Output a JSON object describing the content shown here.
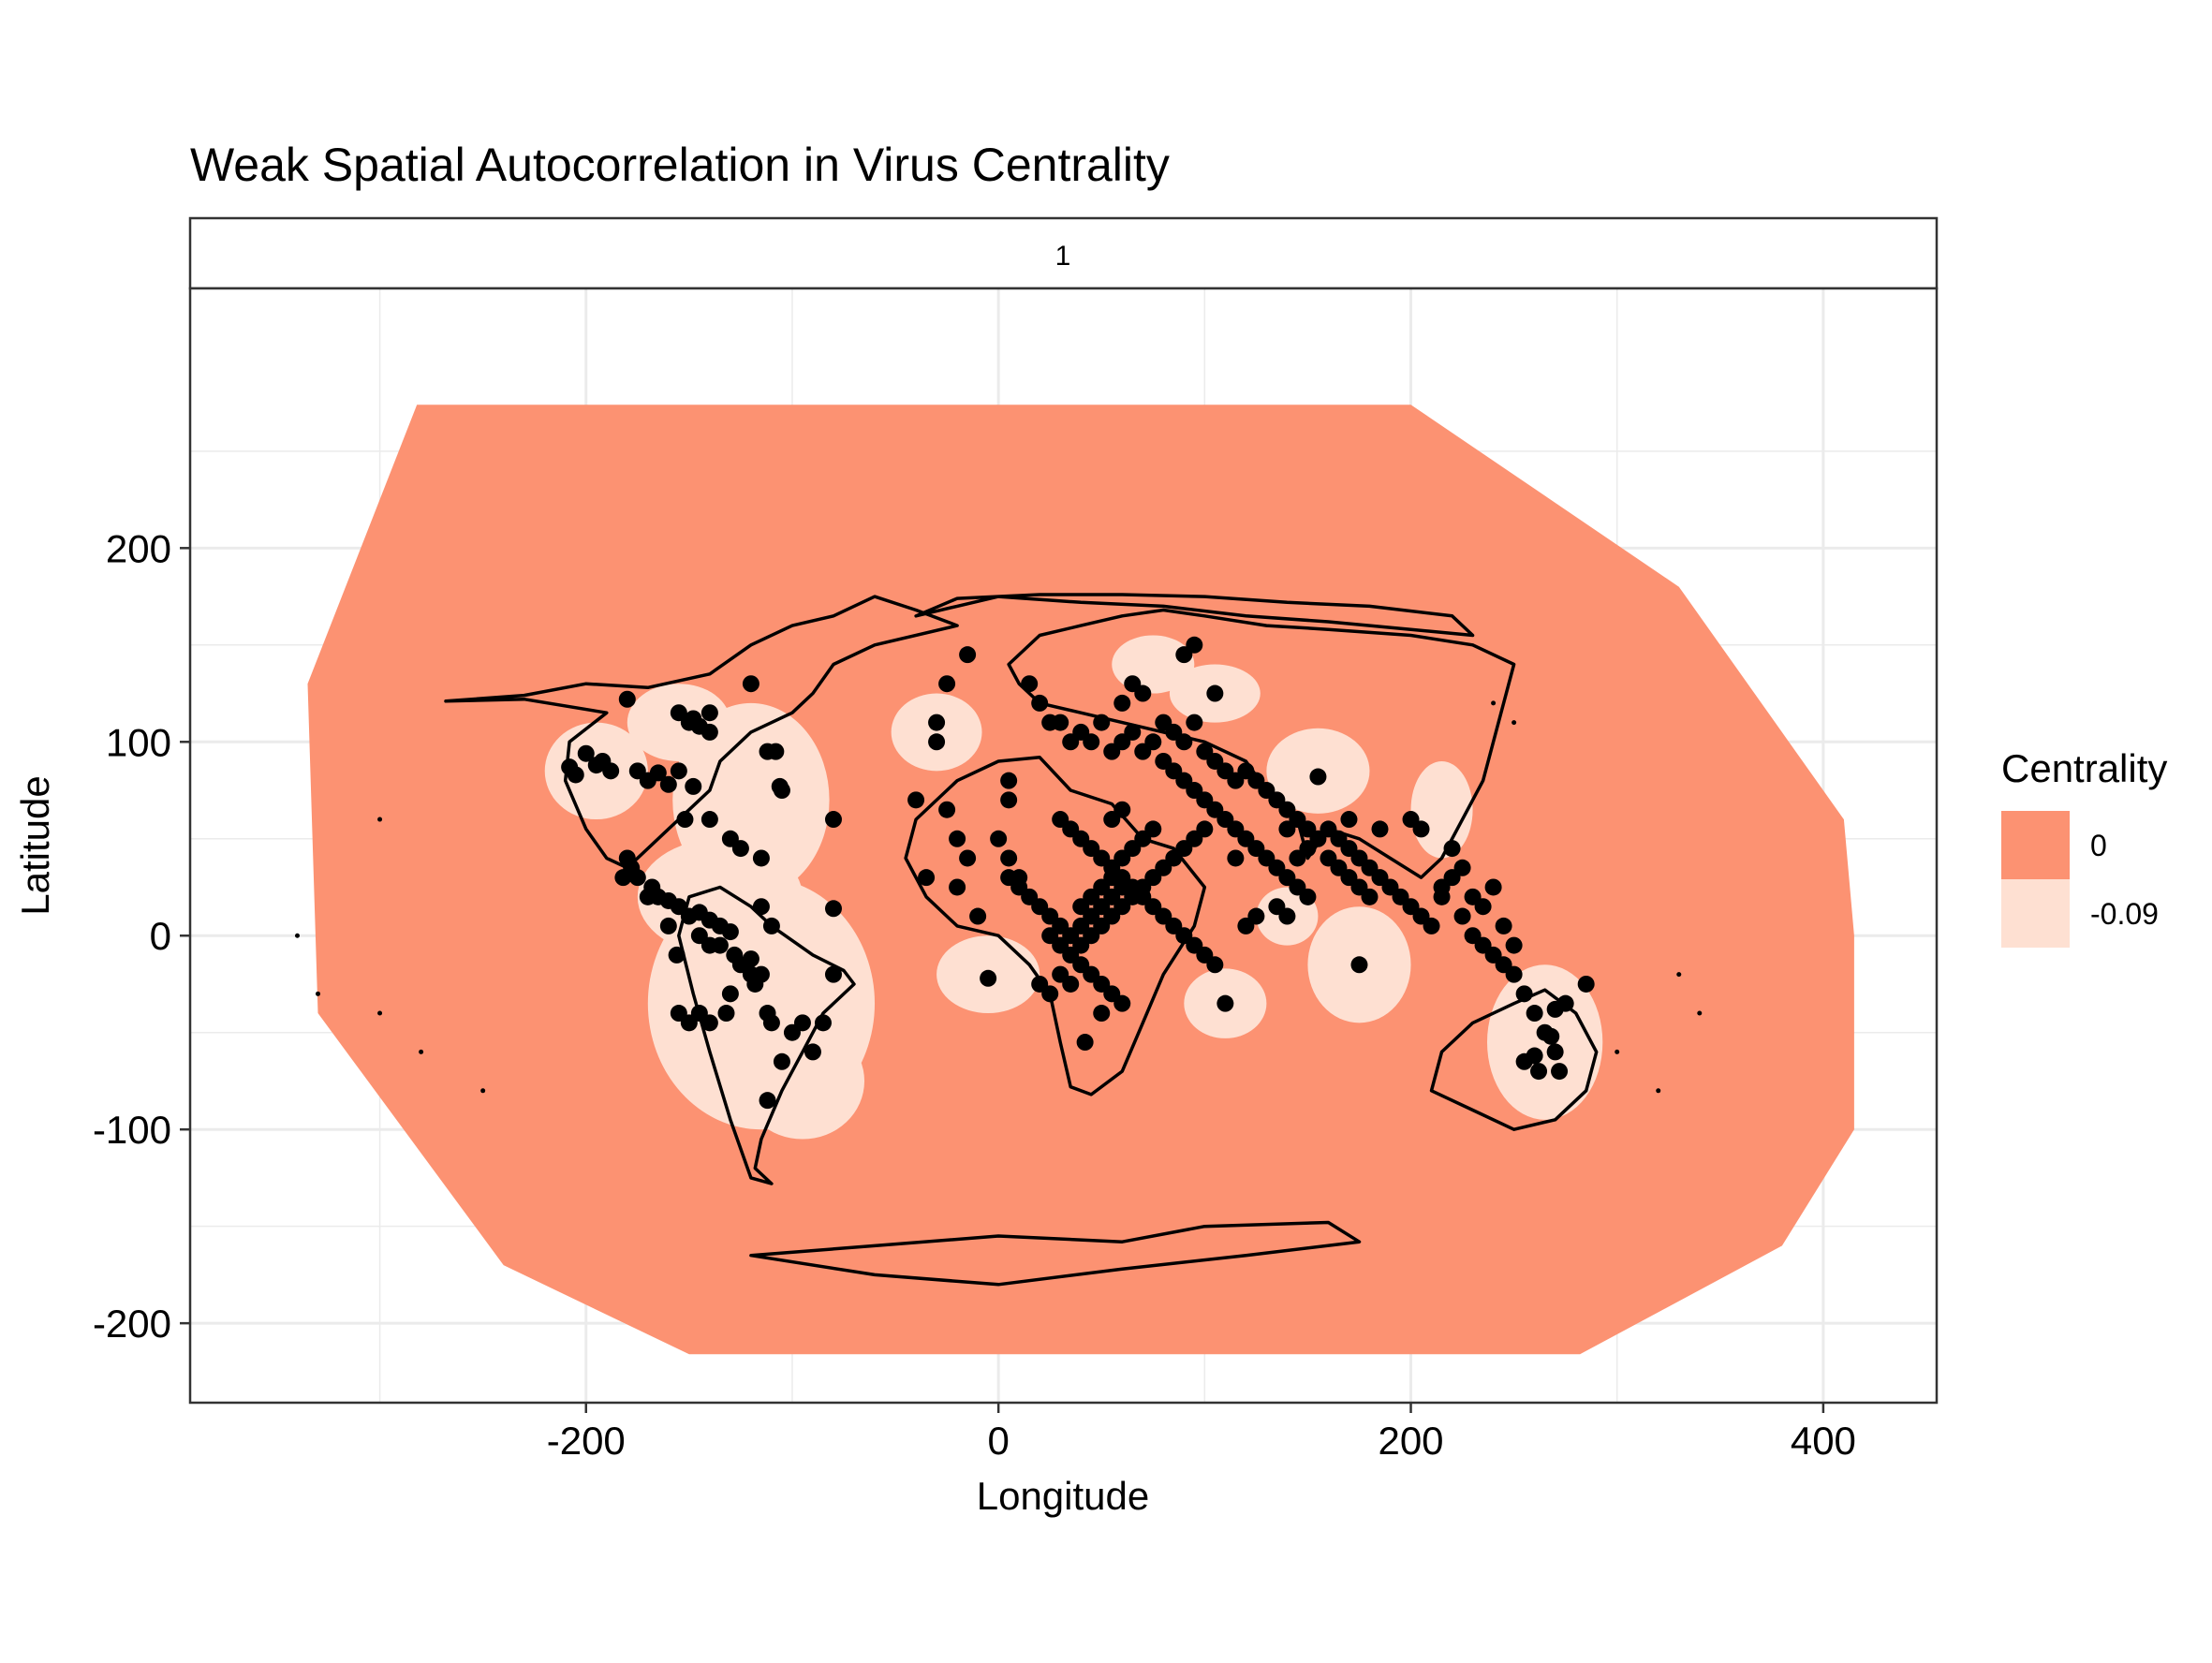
{
  "chart_data": {
    "type": "scatter",
    "title": "Weak Spatial Autocorrelation in Virus Centrality",
    "facet_label": "1",
    "xlabel": "Longitude",
    "ylabel": "Latitude",
    "xlim": [
      -392,
      455
    ],
    "ylim": [
      -241,
      334
    ],
    "x_ticks": [
      -200,
      0,
      200,
      400
    ],
    "y_ticks": [
      200,
      100,
      0,
      -100,
      -200
    ],
    "x_tick_labels": [
      "-200",
      "0",
      "200",
      "400"
    ],
    "y_tick_labels": [
      "200",
      "100",
      "0",
      "-100",
      "-200"
    ],
    "grid": true,
    "legend": {
      "title": "Centrality",
      "placement": "right",
      "entries": [
        {
          "label": "0",
          "value": 0,
          "color": "#FC9272"
        },
        {
          "label": "-0.09",
          "value": -0.09,
          "color": "#FEE0D2"
        }
      ]
    },
    "colors": {
      "surface_high": "#FC9272",
      "surface_low": "#FEE0D2",
      "points": "#000000",
      "coastline": "#000000",
      "grid": "#EBEBEB",
      "panel_border": "#333333"
    },
    "surface_region": [
      [
        -282,
        274
      ],
      [
        0,
        274
      ],
      [
        200,
        274
      ],
      [
        330,
        180
      ],
      [
        410,
        60
      ],
      [
        415,
        0
      ],
      [
        415,
        -100
      ],
      [
        380,
        -160
      ],
      [
        282,
        -216
      ],
      [
        0,
        -216
      ],
      [
        -150,
        -216
      ],
      [
        -240,
        -170
      ],
      [
        -330,
        -40
      ],
      [
        -335,
        130
      ],
      [
        -282,
        274
      ]
    ],
    "low_centrality_zones": [
      {
        "x": -120,
        "y": 70,
        "rx": 38,
        "ry": 50
      },
      {
        "x": -135,
        "y": 20,
        "rx": 40,
        "ry": 30
      },
      {
        "x": -115,
        "y": -35,
        "rx": 55,
        "ry": 65
      },
      {
        "x": -95,
        "y": -75,
        "rx": 30,
        "ry": 30
      },
      {
        "x": -195,
        "y": 85,
        "rx": 25,
        "ry": 25
      },
      {
        "x": -155,
        "y": 110,
        "rx": 25,
        "ry": 20
      },
      {
        "x": -30,
        "y": 105,
        "rx": 22,
        "ry": 20
      },
      {
        "x": -5,
        "y": -20,
        "rx": 25,
        "ry": 20
      },
      {
        "x": 75,
        "y": 140,
        "rx": 20,
        "ry": 15
      },
      {
        "x": 105,
        "y": 125,
        "rx": 22,
        "ry": 15
      },
      {
        "x": 155,
        "y": 85,
        "rx": 25,
        "ry": 22
      },
      {
        "x": 175,
        "y": -15,
        "rx": 25,
        "ry": 30
      },
      {
        "x": 110,
        "y": -35,
        "rx": 20,
        "ry": 18
      },
      {
        "x": 265,
        "y": -55,
        "rx": 28,
        "ry": 40
      },
      {
        "x": 215,
        "y": 65,
        "rx": 15,
        "ry": 25
      },
      {
        "x": 140,
        "y": 10,
        "rx": 15,
        "ry": 15
      }
    ],
    "points": [
      [
        -208,
        87
      ],
      [
        -205,
        83
      ],
      [
        -200,
        94
      ],
      [
        -195,
        88
      ],
      [
        -192,
        90
      ],
      [
        -188,
        85
      ],
      [
        -180,
        122
      ],
      [
        -175,
        85
      ],
      [
        -170,
        80
      ],
      [
        -165,
        84
      ],
      [
        -160,
        78
      ],
      [
        -155,
        115
      ],
      [
        -150,
        110
      ],
      [
        -148,
        112
      ],
      [
        -145,
        108
      ],
      [
        -140,
        105
      ],
      [
        -140,
        115
      ],
      [
        -155,
        85
      ],
      [
        -148,
        77
      ],
      [
        -152,
        60
      ],
      [
        -140,
        60
      ],
      [
        -175,
        30
      ],
      [
        -168,
        25
      ],
      [
        -165,
        20
      ],
      [
        -160,
        18
      ],
      [
        -155,
        15
      ],
      [
        -150,
        10
      ],
      [
        -145,
        12
      ],
      [
        -140,
        8
      ],
      [
        -145,
        0
      ],
      [
        -140,
        -5
      ],
      [
        -135,
        5
      ],
      [
        -130,
        2
      ],
      [
        -128,
        -10
      ],
      [
        -125,
        -15
      ],
      [
        -120,
        -20
      ],
      [
        -115,
        15
      ],
      [
        -110,
        5
      ],
      [
        -130,
        50
      ],
      [
        -125,
        45
      ],
      [
        -115,
        40
      ],
      [
        -108,
        95
      ],
      [
        -106,
        77
      ],
      [
        -105,
        75
      ],
      [
        -80,
        60
      ],
      [
        -80,
        14
      ],
      [
        -100,
        -50
      ],
      [
        -110,
        -45
      ],
      [
        -112,
        -40
      ],
      [
        -115,
        -20
      ],
      [
        -118,
        -25
      ],
      [
        -105,
        -65
      ],
      [
        -95,
        -45
      ],
      [
        -90,
        -60
      ],
      [
        -85,
        -45
      ],
      [
        -80,
        -20
      ],
      [
        -112,
        -85
      ],
      [
        -130,
        -30
      ],
      [
        -132,
        -40
      ],
      [
        -140,
        -45
      ],
      [
        -145,
        -40
      ],
      [
        -155,
        -40
      ],
      [
        -150,
        -45
      ],
      [
        -120,
        130
      ],
      [
        -112,
        95
      ],
      [
        -180,
        40
      ],
      [
        -178,
        35
      ],
      [
        -182,
        30
      ],
      [
        -170,
        20
      ],
      [
        -160,
        5
      ],
      [
        -156,
        -10
      ],
      [
        -135,
        -5
      ],
      [
        -120,
        -12
      ],
      [
        -30,
        110
      ],
      [
        -30,
        100
      ],
      [
        -40,
        70
      ],
      [
        -35,
        30
      ],
      [
        -20,
        25
      ],
      [
        -10,
        10
      ],
      [
        -5,
        -22
      ],
      [
        -25,
        65
      ],
      [
        -15,
        40
      ],
      [
        -20,
        50
      ],
      [
        5,
        80
      ],
      [
        5,
        70
      ],
      [
        0,
        50
      ],
      [
        5,
        40
      ],
      [
        10,
        30
      ],
      [
        -15,
        145
      ],
      [
        -25,
        130
      ],
      [
        15,
        130
      ],
      [
        20,
        120
      ],
      [
        25,
        110
      ],
      [
        30,
        110
      ],
      [
        35,
        100
      ],
      [
        40,
        105
      ],
      [
        45,
        100
      ],
      [
        50,
        110
      ],
      [
        55,
        95
      ],
      [
        60,
        100
      ],
      [
        65,
        105
      ],
      [
        70,
        95
      ],
      [
        75,
        100
      ],
      [
        80,
        110
      ],
      [
        85,
        105
      ],
      [
        90,
        100
      ],
      [
        95,
        110
      ],
      [
        100,
        95
      ],
      [
        105,
        90
      ],
      [
        110,
        85
      ],
      [
        115,
        80
      ],
      [
        120,
        85
      ],
      [
        125,
        80
      ],
      [
        130,
        75
      ],
      [
        135,
        70
      ],
      [
        140,
        65
      ],
      [
        145,
        60
      ],
      [
        150,
        55
      ],
      [
        155,
        50
      ],
      [
        160,
        55
      ],
      [
        165,
        50
      ],
      [
        170,
        45
      ],
      [
        175,
        40
      ],
      [
        180,
        35
      ],
      [
        185,
        30
      ],
      [
        190,
        25
      ],
      [
        195,
        20
      ],
      [
        200,
        15
      ],
      [
        205,
        10
      ],
      [
        210,
        5
      ],
      [
        215,
        20
      ],
      [
        220,
        30
      ],
      [
        225,
        10
      ],
      [
        230,
        0
      ],
      [
        235,
        -5
      ],
      [
        240,
        -10
      ],
      [
        245,
        -15
      ],
      [
        250,
        -20
      ],
      [
        255,
        -30
      ],
      [
        260,
        -40
      ],
      [
        265,
        -50
      ],
      [
        270,
        -60
      ],
      [
        272,
        -70
      ],
      [
        262,
        -70
      ],
      [
        255,
        -65
      ],
      [
        260,
        -62
      ],
      [
        268,
        -52
      ],
      [
        270,
        -38
      ],
      [
        275,
        -35
      ],
      [
        285,
        -25
      ],
      [
        60,
        120
      ],
      [
        65,
        130
      ],
      [
        70,
        125
      ],
      [
        80,
        90
      ],
      [
        85,
        85
      ],
      [
        90,
        80
      ],
      [
        95,
        75
      ],
      [
        100,
        70
      ],
      [
        105,
        65
      ],
      [
        110,
        60
      ],
      [
        115,
        55
      ],
      [
        120,
        50
      ],
      [
        125,
        45
      ],
      [
        130,
        40
      ],
      [
        135,
        35
      ],
      [
        140,
        30
      ],
      [
        145,
        25
      ],
      [
        150,
        20
      ],
      [
        30,
        60
      ],
      [
        35,
        55
      ],
      [
        40,
        50
      ],
      [
        45,
        45
      ],
      [
        50,
        40
      ],
      [
        55,
        35
      ],
      [
        60,
        30
      ],
      [
        65,
        25
      ],
      [
        70,
        20
      ],
      [
        75,
        15
      ],
      [
        80,
        10
      ],
      [
        85,
        5
      ],
      [
        90,
        0
      ],
      [
        95,
        -5
      ],
      [
        100,
        -10
      ],
      [
        105,
        -15
      ],
      [
        25,
        0
      ],
      [
        30,
        -5
      ],
      [
        35,
        -10
      ],
      [
        40,
        -15
      ],
      [
        45,
        -20
      ],
      [
        50,
        -25
      ],
      [
        55,
        -30
      ],
      [
        60,
        -35
      ],
      [
        40,
        5
      ],
      [
        45,
        10
      ],
      [
        50,
        15
      ],
      [
        55,
        20
      ],
      [
        60,
        25
      ],
      [
        42,
        -55
      ],
      [
        50,
        -40
      ],
      [
        20,
        -25
      ],
      [
        25,
        -30
      ],
      [
        30,
        -20
      ],
      [
        35,
        -25
      ],
      [
        40,
        15
      ],
      [
        45,
        20
      ],
      [
        50,
        25
      ],
      [
        55,
        30
      ],
      [
        60,
        40
      ],
      [
        65,
        45
      ],
      [
        70,
        50
      ],
      [
        75,
        55
      ],
      [
        55,
        60
      ],
      [
        60,
        65
      ],
      [
        105,
        125
      ],
      [
        90,
        145
      ],
      [
        95,
        150
      ],
      [
        115,
        40
      ],
      [
        110,
        -35
      ],
      [
        120,
        5
      ],
      [
        125,
        10
      ],
      [
        135,
        15
      ],
      [
        140,
        10
      ],
      [
        155,
        82
      ],
      [
        175,
        -15
      ],
      [
        170,
        60
      ],
      [
        185,
        55
      ],
      [
        200,
        60
      ],
      [
        205,
        55
      ],
      [
        215,
        25
      ],
      [
        220,
        45
      ],
      [
        225,
        35
      ],
      [
        230,
        20
      ],
      [
        235,
        15
      ],
      [
        240,
        25
      ],
      [
        245,
        5
      ],
      [
        250,
        -5
      ],
      [
        150,
        45
      ],
      [
        140,
        55
      ],
      [
        145,
        40
      ],
      [
        160,
        40
      ],
      [
        165,
        35
      ],
      [
        170,
        30
      ],
      [
        175,
        25
      ],
      [
        180,
        20
      ],
      [
        100,
        55
      ],
      [
        95,
        50
      ],
      [
        90,
        45
      ],
      [
        85,
        40
      ],
      [
        80,
        35
      ],
      [
        75,
        30
      ],
      [
        70,
        25
      ],
      [
        65,
        20
      ],
      [
        60,
        15
      ],
      [
        55,
        10
      ],
      [
        50,
        5
      ],
      [
        45,
        0
      ],
      [
        40,
        -5
      ],
      [
        35,
        0
      ],
      [
        30,
        5
      ],
      [
        25,
        10
      ],
      [
        20,
        15
      ],
      [
        15,
        20
      ],
      [
        10,
        25
      ],
      [
        5,
        30
      ]
    ]
  }
}
